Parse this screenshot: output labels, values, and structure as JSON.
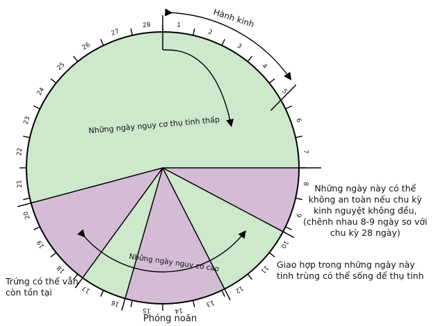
{
  "colors": {
    "low_risk_fill": "#cde8cb",
    "high_risk_fill": "#d4bcd6",
    "outline": "#000000",
    "background": "#ffffff"
  },
  "days": [
    "1",
    "2",
    "3",
    "4",
    "5",
    "6",
    "7",
    "8",
    "9",
    "10",
    "11",
    "12",
    "13",
    "14",
    "15",
    "16",
    "17",
    "18",
    "19",
    "20",
    "21",
    "22",
    "23",
    "24",
    "25",
    "26",
    "27",
    "28"
  ],
  "labels": {
    "menstruation": "Hành kinh",
    "low_risk": "Những ngày nguy cơ thụ tinh thấp",
    "high_risk": "Những ngày nguy cơ cao"
  },
  "notes": {
    "irregular": [
      "Những ngày này có thể",
      "không an toàn nếu chu kỳ",
      "kinh nguyệt không đều,",
      "(chênh nhau 8-9 ngày so với",
      "chu kỳ 28 ngày)"
    ],
    "intercourse": [
      "Giao hợp  trong những ngày này",
      "tinh trùng có thể sống để thụ tinh"
    ],
    "egg_survive": [
      "Trứng có thể vẫn",
      "còn tồn tại"
    ],
    "ovulation": "Phóng noãn"
  }
}
